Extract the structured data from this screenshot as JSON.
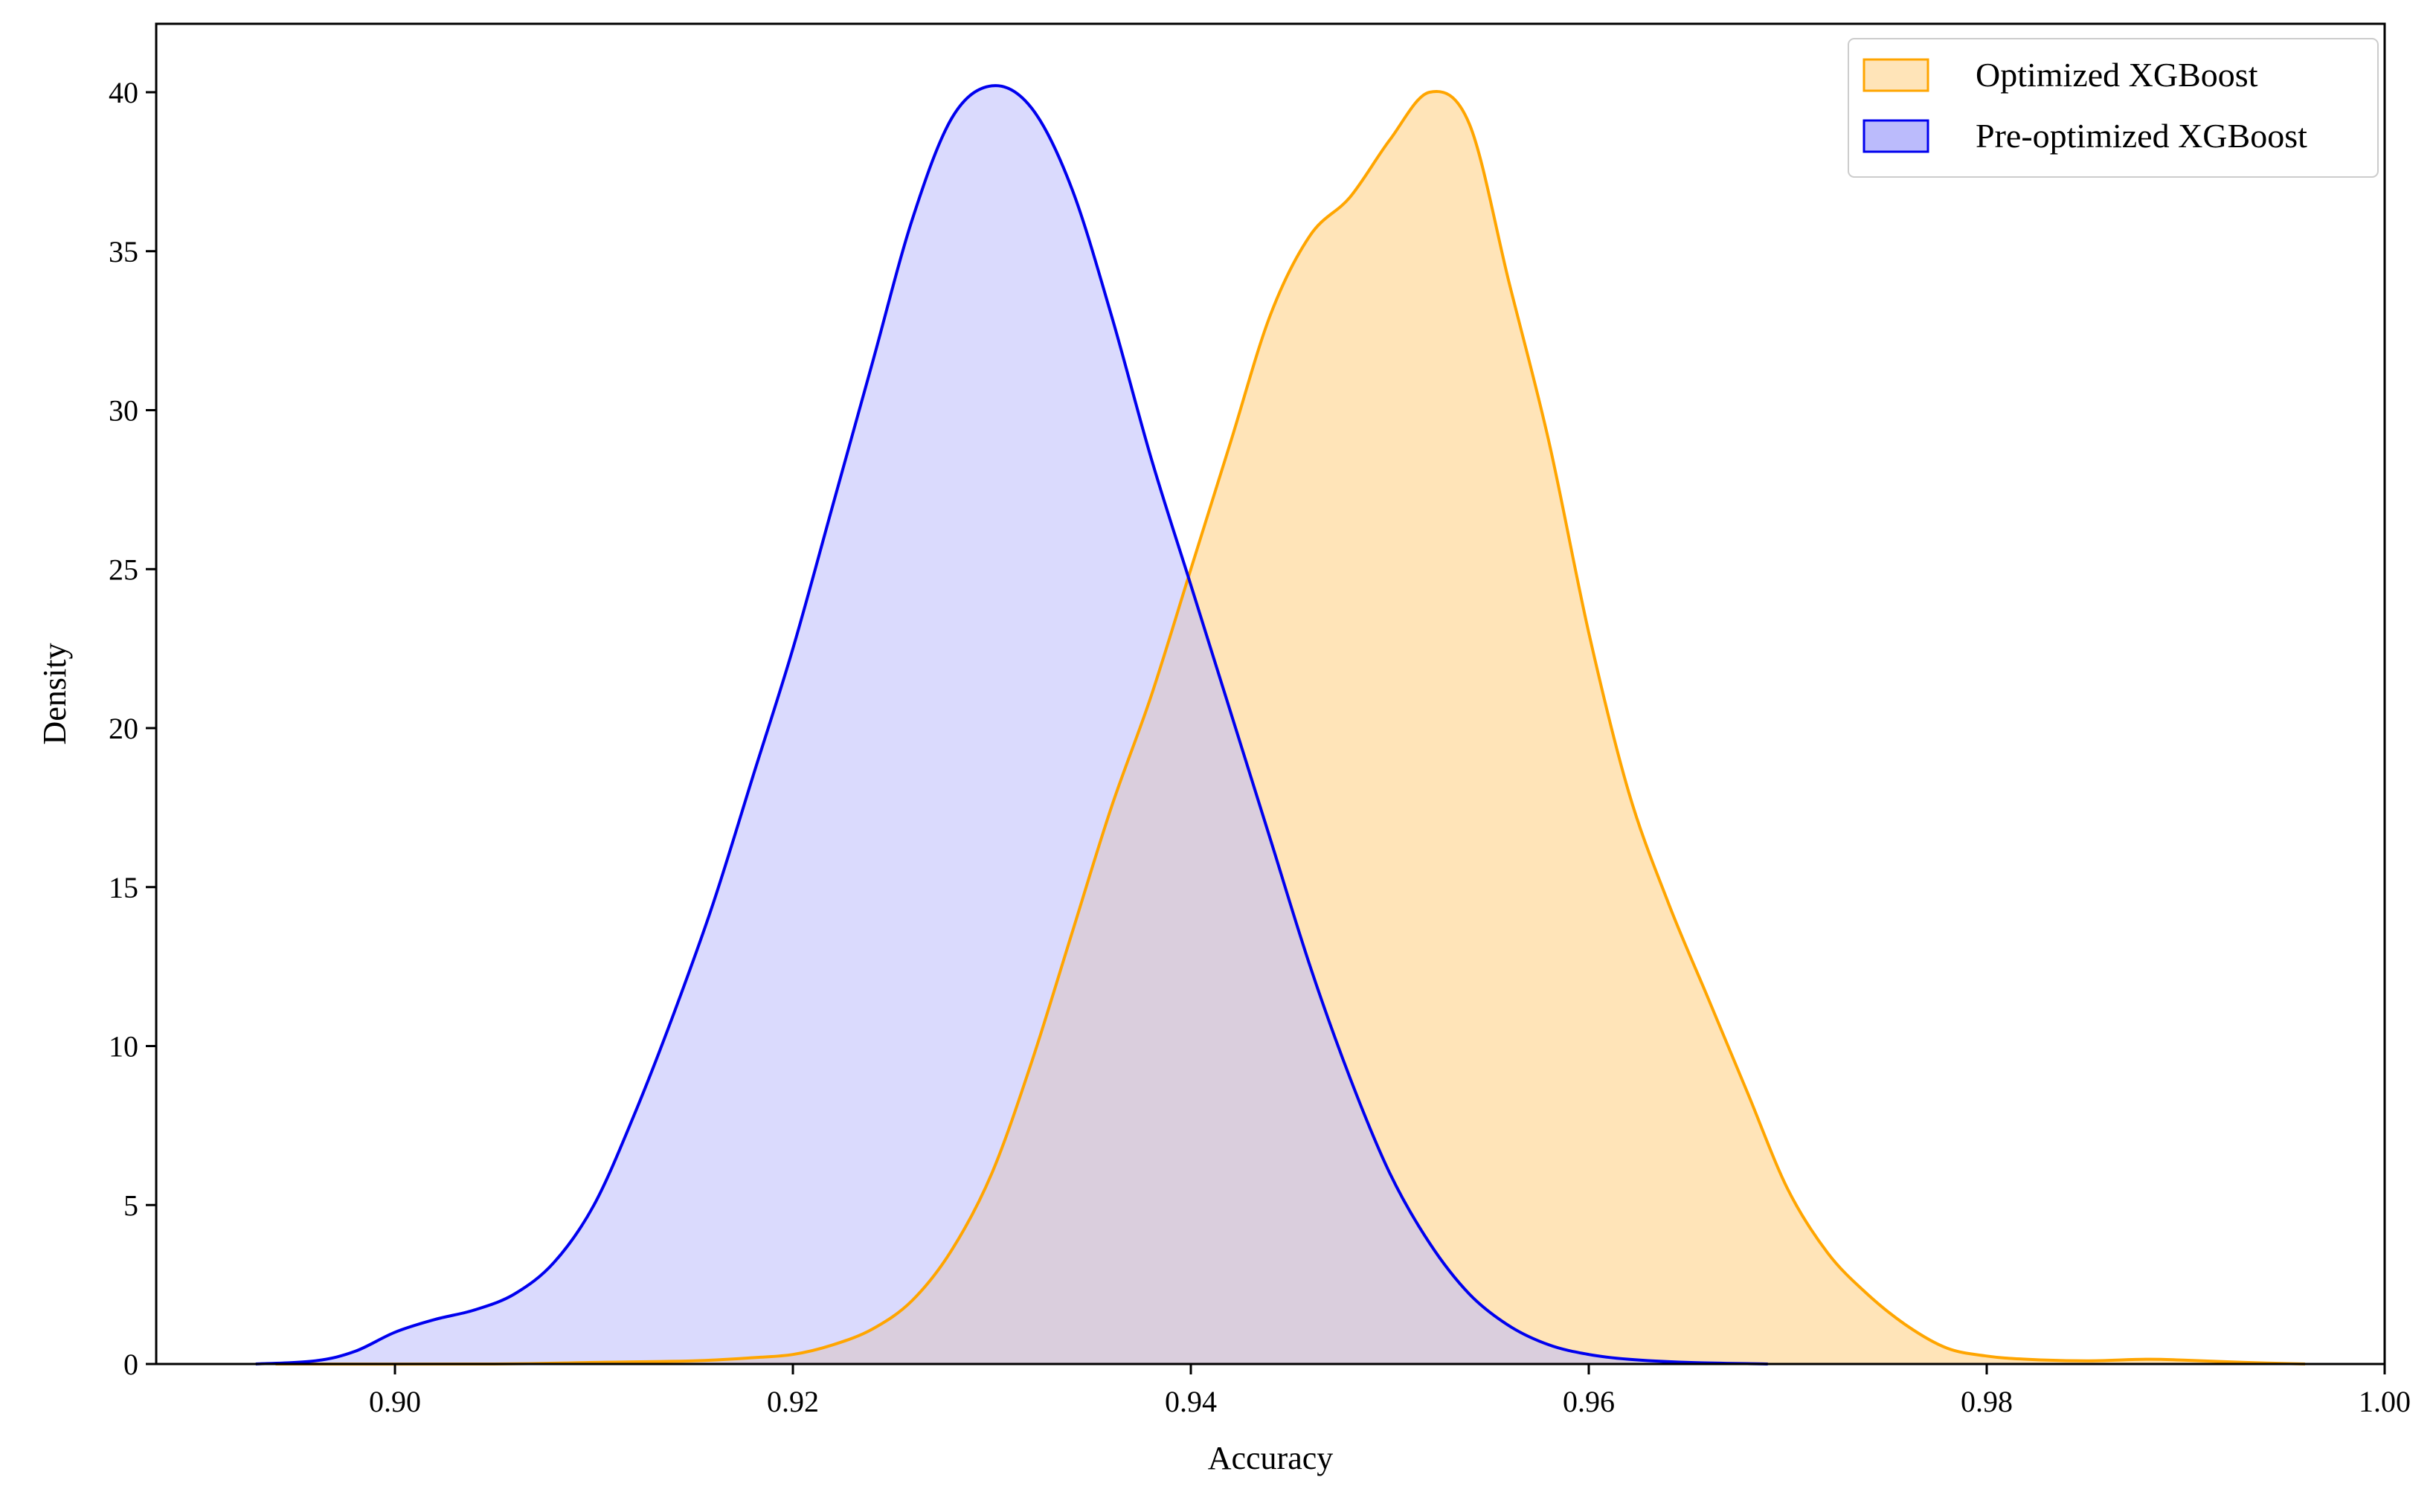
{
  "chart_data": {
    "type": "area",
    "title": "",
    "xlabel": "Accuracy",
    "ylabel": "Density",
    "xlim": [
      0.888,
      1.0
    ],
    "ylim": [
      0,
      42
    ],
    "x_ticks": [
      0.9,
      0.92,
      0.94,
      0.96,
      0.98,
      1.0
    ],
    "x_tick_labels": [
      "0.90",
      "0.92",
      "0.94",
      "0.96",
      "0.98",
      "1.00"
    ],
    "y_ticks": [
      0,
      5,
      10,
      15,
      20,
      25,
      30,
      35,
      40
    ],
    "y_tick_labels": [
      "0",
      "5",
      "10",
      "15",
      "20",
      "25",
      "30",
      "35",
      "40"
    ],
    "grid": false,
    "legend_position": "top-right",
    "series": [
      {
        "name": "Optimized XGBoost",
        "line_color": "#FFA500",
        "fill_color": "#FFE4B8",
        "points": [
          [
            0.894,
            0.0
          ],
          [
            0.905,
            0.0
          ],
          [
            0.91,
            0.05
          ],
          [
            0.915,
            0.1
          ],
          [
            0.918,
            0.2
          ],
          [
            0.92,
            0.3
          ],
          [
            0.922,
            0.6
          ],
          [
            0.924,
            1.1
          ],
          [
            0.926,
            2.0
          ],
          [
            0.928,
            3.6
          ],
          [
            0.93,
            6.0
          ],
          [
            0.932,
            9.5
          ],
          [
            0.934,
            13.5
          ],
          [
            0.936,
            17.5
          ],
          [
            0.938,
            21.0
          ],
          [
            0.94,
            25.0
          ],
          [
            0.942,
            29.0
          ],
          [
            0.944,
            33.0
          ],
          [
            0.946,
            35.5
          ],
          [
            0.948,
            36.7
          ],
          [
            0.95,
            38.5
          ],
          [
            0.952,
            40.0
          ],
          [
            0.954,
            39.0
          ],
          [
            0.956,
            34.0
          ],
          [
            0.958,
            29.0
          ],
          [
            0.96,
            23.0
          ],
          [
            0.962,
            18.0
          ],
          [
            0.964,
            14.5
          ],
          [
            0.966,
            11.5
          ],
          [
            0.968,
            8.5
          ],
          [
            0.97,
            5.5
          ],
          [
            0.972,
            3.5
          ],
          [
            0.974,
            2.2
          ],
          [
            0.976,
            1.2
          ],
          [
            0.978,
            0.5
          ],
          [
            0.98,
            0.25
          ],
          [
            0.982,
            0.15
          ],
          [
            0.985,
            0.1
          ],
          [
            0.988,
            0.15
          ],
          [
            0.99,
            0.12
          ],
          [
            0.993,
            0.05
          ],
          [
            0.996,
            0.0
          ]
        ]
      },
      {
        "name": "Pre-optimized XGBoost",
        "line_color": "#0000EE",
        "fill_color": "#BBBBFC",
        "points": [
          [
            0.893,
            0.0
          ],
          [
            0.896,
            0.1
          ],
          [
            0.898,
            0.4
          ],
          [
            0.9,
            1.0
          ],
          [
            0.902,
            1.4
          ],
          [
            0.904,
            1.7
          ],
          [
            0.906,
            2.2
          ],
          [
            0.908,
            3.2
          ],
          [
            0.91,
            5.0
          ],
          [
            0.912,
            7.8
          ],
          [
            0.914,
            11.0
          ],
          [
            0.916,
            14.5
          ],
          [
            0.918,
            18.5
          ],
          [
            0.92,
            22.5
          ],
          [
            0.922,
            27.0
          ],
          [
            0.924,
            31.5
          ],
          [
            0.926,
            36.0
          ],
          [
            0.928,
            39.2
          ],
          [
            0.93,
            40.2
          ],
          [
            0.932,
            39.5
          ],
          [
            0.934,
            37.0
          ],
          [
            0.936,
            33.0
          ],
          [
            0.938,
            28.5
          ],
          [
            0.94,
            24.5
          ],
          [
            0.942,
            20.5
          ],
          [
            0.944,
            16.5
          ],
          [
            0.946,
            12.5
          ],
          [
            0.948,
            9.0
          ],
          [
            0.95,
            6.0
          ],
          [
            0.952,
            3.8
          ],
          [
            0.954,
            2.2
          ],
          [
            0.956,
            1.2
          ],
          [
            0.958,
            0.6
          ],
          [
            0.96,
            0.3
          ],
          [
            0.962,
            0.15
          ],
          [
            0.965,
            0.05
          ],
          [
            0.969,
            0.0
          ]
        ]
      }
    ]
  }
}
